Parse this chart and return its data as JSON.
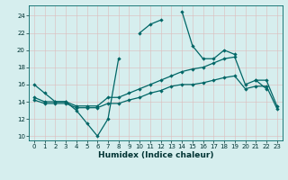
{
  "xlabel": "Humidex (Indice chaleur)",
  "background_color": "#d6eeee",
  "grid_color": "#c8dede",
  "line_color": "#006666",
  "xlim": [
    -0.5,
    23.5
  ],
  "ylim": [
    9.5,
    25.2
  ],
  "xticks": [
    0,
    1,
    2,
    3,
    4,
    5,
    6,
    7,
    8,
    9,
    10,
    11,
    12,
    13,
    14,
    15,
    16,
    17,
    18,
    19,
    20,
    21,
    22,
    23
  ],
  "yticks": [
    10,
    12,
    14,
    16,
    18,
    20,
    22,
    24
  ],
  "line1_y": [
    16,
    15,
    14,
    14,
    13,
    11.5,
    10,
    12,
    19,
    null,
    22,
    23,
    23.5,
    null,
    24.5,
    20.5,
    19,
    19,
    20,
    19.5,
    null,
    16.5,
    15.5,
    null
  ],
  "line2_y": [
    14.5,
    14,
    14,
    14,
    13.5,
    13.5,
    13.5,
    14.5,
    14.5,
    15,
    15.5,
    16,
    16.5,
    17,
    17.5,
    17.8,
    18,
    18.5,
    19,
    19.2,
    16,
    16.5,
    16.5,
    13.5
  ],
  "line3_y": [
    14.2,
    13.8,
    13.8,
    13.8,
    13.3,
    13.3,
    13.3,
    13.8,
    13.8,
    14.2,
    14.5,
    15.0,
    15.3,
    15.8,
    16.0,
    16.0,
    16.2,
    16.5,
    16.8,
    17.0,
    15.5,
    15.8,
    15.8,
    13.2
  ]
}
